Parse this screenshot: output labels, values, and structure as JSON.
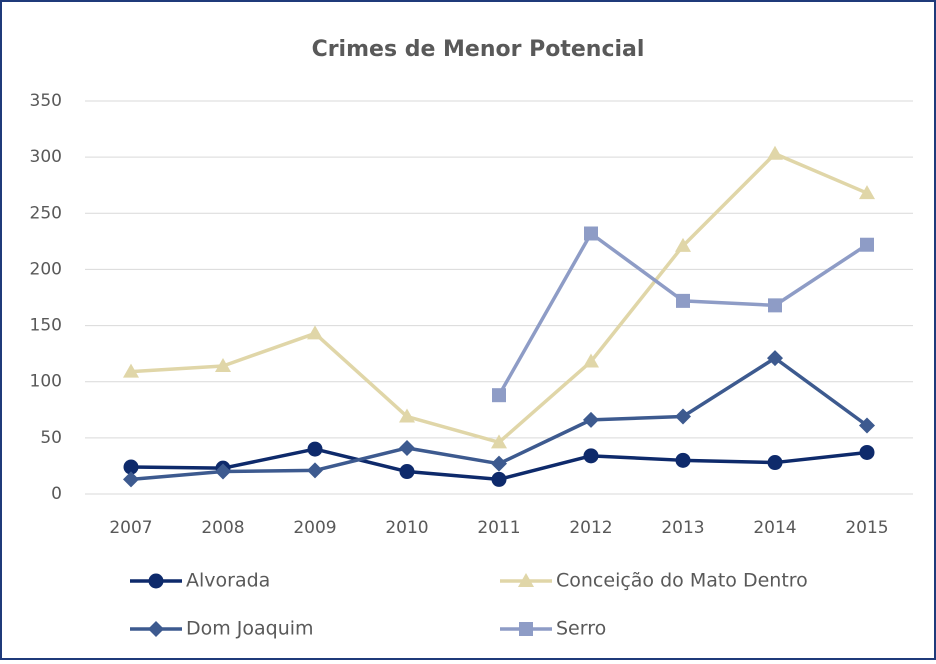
{
  "chart_data": {
    "type": "line",
    "title": "Crimes de Menor Potencial",
    "categories": [
      "2007",
      "2008",
      "2009",
      "2010",
      "2011",
      "2012",
      "2013",
      "2014",
      "2015"
    ],
    "series": [
      {
        "name": "Alvorada",
        "color": "#0e2a6b",
        "marker": "circle",
        "values": [
          24,
          23,
          40,
          20,
          13,
          34,
          30,
          28,
          37
        ]
      },
      {
        "name": "Conceição do Mato Dentro",
        "color": "#e0d6a8",
        "marker": "triangle",
        "values": [
          109,
          114,
          143,
          69,
          46,
          118,
          221,
          303,
          268
        ]
      },
      {
        "name": "Dom Joaquim",
        "color": "#3d5a8f",
        "marker": "diamond",
        "values": [
          13,
          20,
          21,
          41,
          27,
          66,
          69,
          121,
          61
        ]
      },
      {
        "name": "Serro",
        "color": "#8e9cc6",
        "marker": "square",
        "values": [
          null,
          null,
          null,
          null,
          88,
          232,
          172,
          168,
          222
        ]
      }
    ],
    "ylim": [
      0,
      350
    ],
    "yticks": [
      0,
      50,
      100,
      150,
      200,
      250,
      300,
      350
    ],
    "grid": true
  }
}
